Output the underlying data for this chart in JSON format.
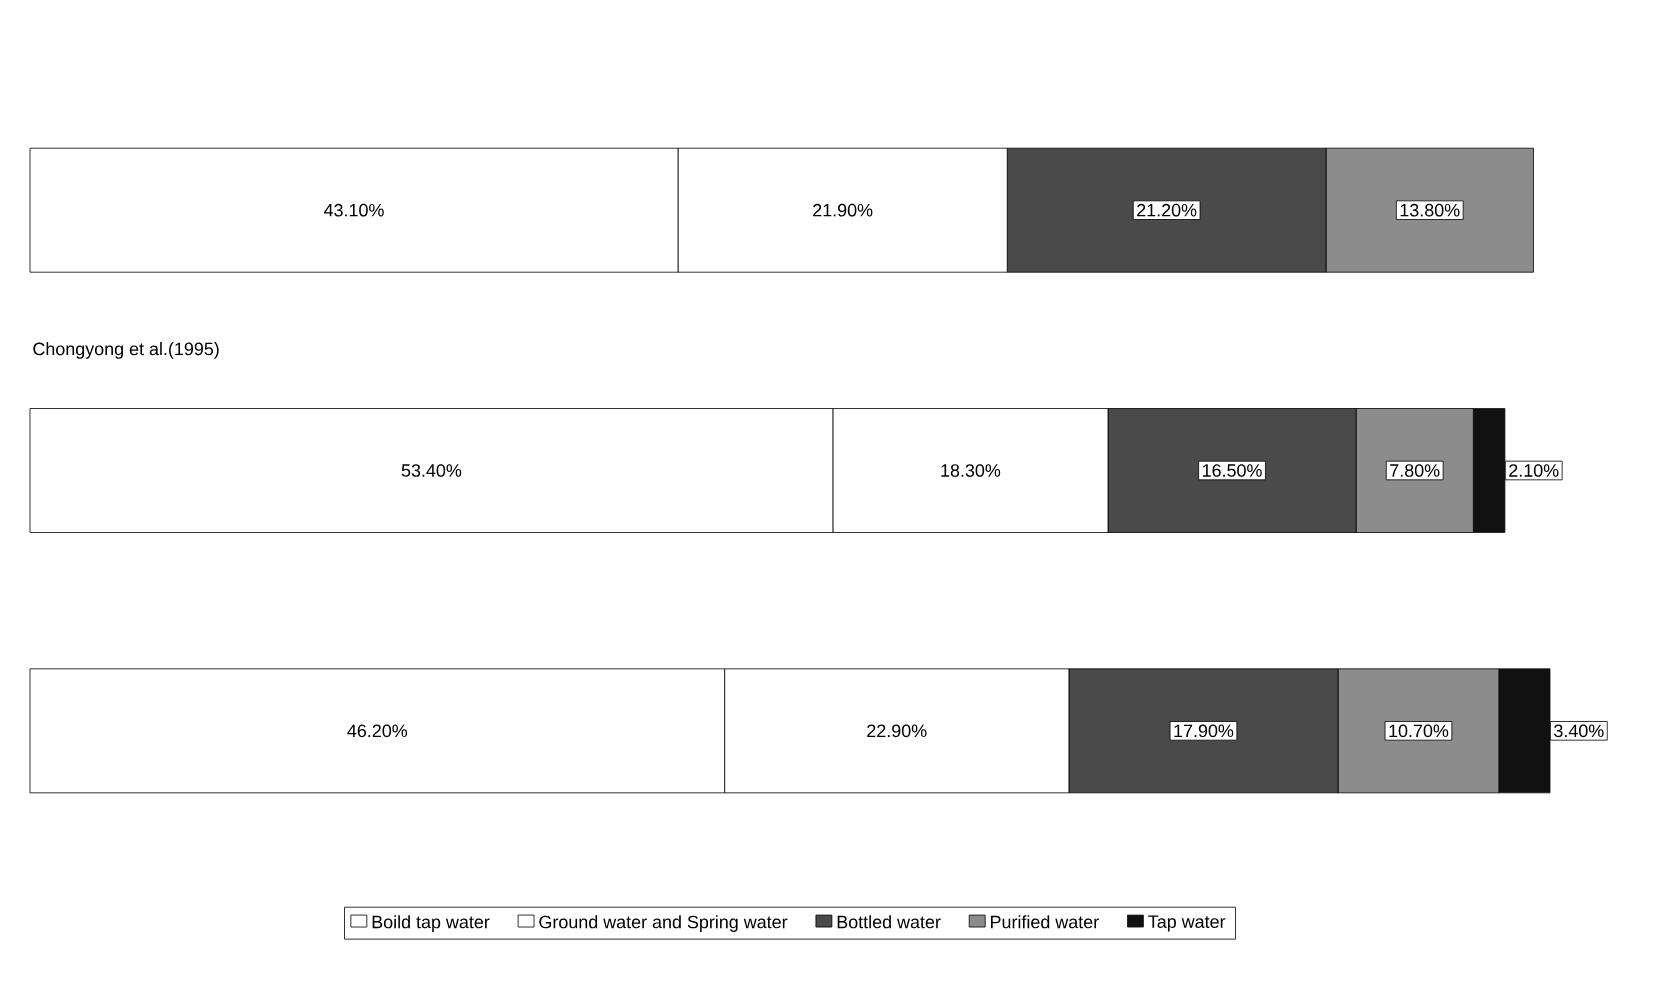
{
  "chart_data": {
    "type": "bar",
    "orientation": "horizontal",
    "stacked": true,
    "legend": "bottom",
    "categories": [
      null,
      "Chongyong et al.(1995)",
      null
    ],
    "series": [
      {
        "name": "Boild tap water",
        "color": "#ffffff",
        "values": [
          43.1,
          53.4,
          46.2
        ],
        "value_labels": [
          "43.10%",
          "53.40%",
          "46.20%"
        ]
      },
      {
        "name": "Ground water and Spring water",
        "color": "#ffffff",
        "values": [
          21.9,
          18.3,
          22.9
        ],
        "value_labels": [
          "21.90%",
          "18.30%",
          "22.90%"
        ]
      },
      {
        "name": "Bottled water",
        "color": "#4a4a4a",
        "values": [
          21.2,
          16.5,
          17.9
        ],
        "value_labels": [
          "21.20%",
          "16.50%",
          "17.90%"
        ]
      },
      {
        "name": "Purified water",
        "color": "#8c8c8c",
        "values": [
          13.8,
          7.8,
          10.7
        ],
        "value_labels": [
          "13.80%",
          "7.80%",
          "10.70%"
        ]
      },
      {
        "name": "Tap water",
        "color": "#111111",
        "values": [
          null,
          2.1,
          3.4
        ],
        "value_labels": [
          null,
          "2.10%",
          "3.40%"
        ]
      }
    ]
  }
}
